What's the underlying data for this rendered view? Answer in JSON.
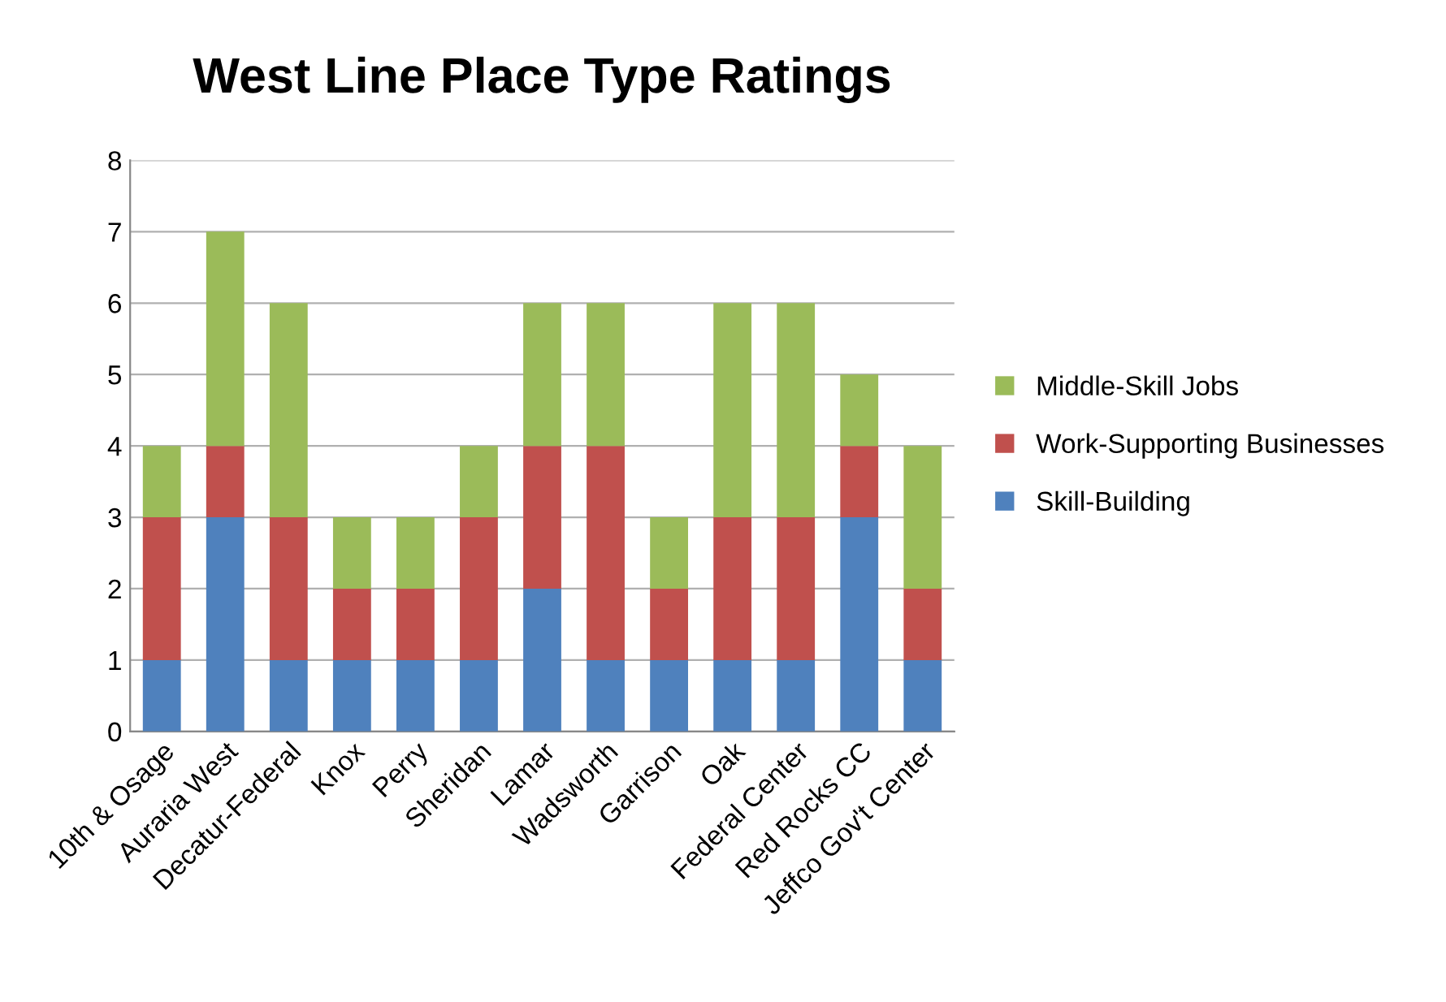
{
  "chart_data": {
    "type": "bar",
    "title": "West Line Place Type Ratings",
    "stacked": true,
    "categories": [
      "10th & Osage",
      "Auraria West",
      "Decatur-Federal",
      "Knox",
      "Perry",
      "Sheridan",
      "Lamar",
      "Wadsworth",
      "Garrison",
      "Oak",
      "Federal Center",
      "Red Rocks CC",
      "Jeffco Gov't Center"
    ],
    "series": [
      {
        "name": "Skill-Building",
        "color": "#4f81bd",
        "values": [
          1,
          3,
          1,
          1,
          1,
          1,
          2,
          1,
          1,
          1,
          1,
          3,
          1
        ]
      },
      {
        "name": "Work-Supporting Businesses",
        "color": "#c0504d",
        "values": [
          2,
          1,
          2,
          1,
          1,
          2,
          2,
          3,
          1,
          2,
          2,
          1,
          1
        ]
      },
      {
        "name": "Middle-Skill Jobs",
        "color": "#9bbb59",
        "values": [
          1,
          3,
          3,
          1,
          1,
          1,
          2,
          2,
          1,
          3,
          3,
          1,
          2
        ]
      }
    ],
    "ylim": [
      0,
      8
    ],
    "yticks": [
      0,
      1,
      2,
      3,
      4,
      5,
      6,
      7,
      8
    ],
    "grid": "y",
    "legend": "right"
  }
}
